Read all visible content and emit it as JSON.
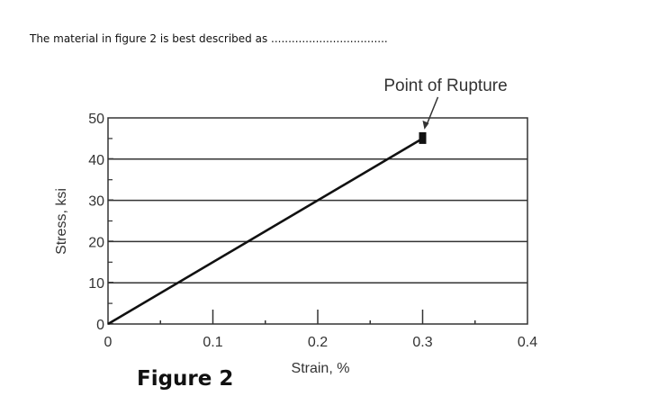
{
  "question": {
    "text": "The material in figure 2 is best described as .................................."
  },
  "figure_label": "Figure 2",
  "chart_data": {
    "type": "line",
    "title": "",
    "xlabel": "Strain, %",
    "ylabel": "Stress, ksi",
    "xlim": [
      0,
      0.4
    ],
    "ylim": [
      0,
      50
    ],
    "x_ticks": [
      "0",
      "0.1",
      "0.2",
      "0.3",
      "0.4"
    ],
    "x_tick_values": [
      0,
      0.1,
      0.2,
      0.3,
      0.4
    ],
    "y_ticks": [
      "0",
      "10",
      "20",
      "30",
      "40",
      "50"
    ],
    "y_tick_values": [
      0,
      10,
      20,
      30,
      40,
      50
    ],
    "grid": "horizontal",
    "series": [
      {
        "x": [
          0,
          0.3
        ],
        "y": [
          0,
          45
        ]
      }
    ],
    "annotations": [
      {
        "text": "Point of Rupture",
        "x": 0.3,
        "y": 45,
        "marker": "square"
      }
    ],
    "line_color": "#111111",
    "grid_color": "#333333"
  }
}
